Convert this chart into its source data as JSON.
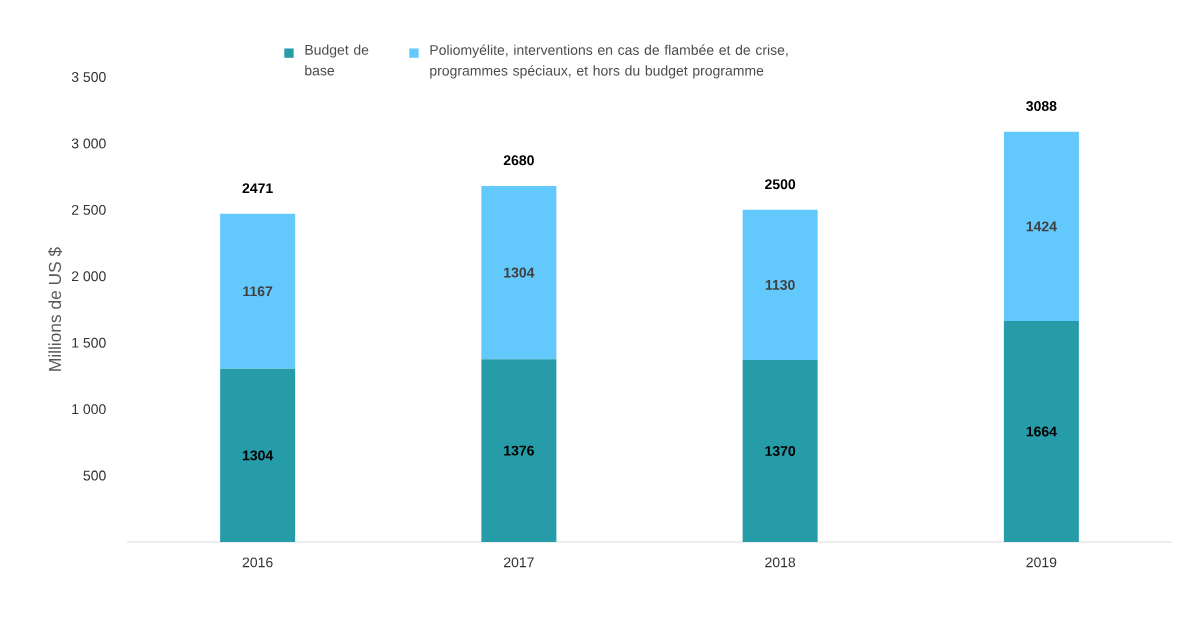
{
  "chart_data": {
    "type": "bar",
    "stacked": true,
    "ylabel": "Millions de US $",
    "categories": [
      "2016",
      "2017",
      "2018",
      "2019"
    ],
    "series": [
      {
        "name": "Budget de base",
        "color": "#279ca9",
        "values": [
          1304,
          1376,
          1370,
          1664
        ],
        "value_labels": [
          "1304",
          "1376",
          "1370",
          "1664"
        ]
      },
      {
        "name": "Poliomyélite, interventions en cas de flambée et de crise, programmes spéciaux, et hors du budget programme",
        "color": "#63c9fd",
        "values": [
          1167,
          1304,
          1130,
          1424
        ],
        "value_labels": [
          "1167",
          "1304",
          "1130",
          "1424"
        ]
      }
    ],
    "totals": [
      "2471",
      "2680",
      "2500",
      "3088"
    ],
    "ylim": [
      0,
      3500
    ],
    "yticks": [
      {
        "value": 500,
        "label": "500"
      },
      {
        "value": 1000,
        "label": "1 000"
      },
      {
        "value": 1500,
        "label": "1 500"
      },
      {
        "value": 2000,
        "label": "2 000"
      },
      {
        "value": 2500,
        "label": "2 500"
      },
      {
        "value": 3000,
        "label": "3 000"
      },
      {
        "value": 3500,
        "label": "3 500"
      }
    ],
    "grid": false,
    "legend": "top"
  }
}
